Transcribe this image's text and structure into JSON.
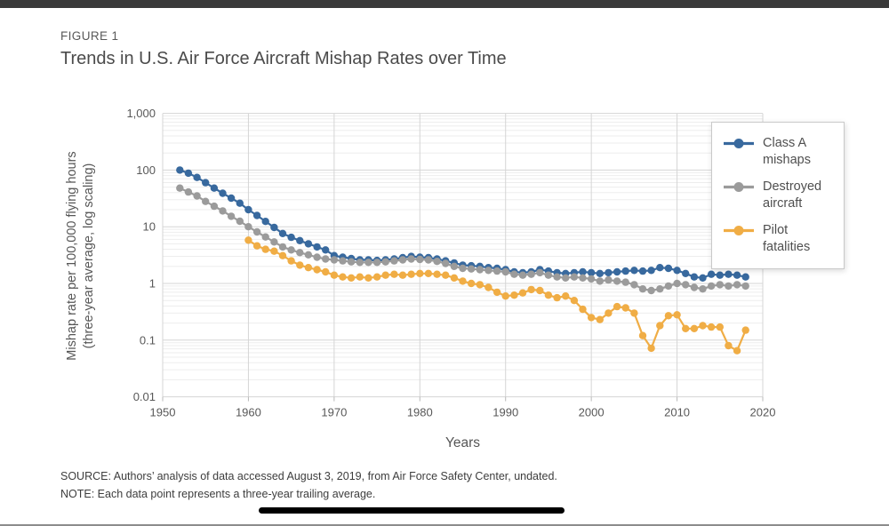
{
  "page": {
    "background": "#ffffff",
    "top_bar_color": "#3a3a3a",
    "bottom_rule_color": "#8c8c8c",
    "home_indicator_color": "#000000"
  },
  "figure": {
    "label": "FIGURE 1",
    "title": "Trends in U.S. Air Force Aircraft Mishap Rates over Time"
  },
  "legend": {
    "items": [
      {
        "label": "Class A mishaps",
        "color": "#38699e"
      },
      {
        "label": "Destroyed aircraft",
        "color": "#9b9b9b"
      },
      {
        "label": "Pilot fatalities",
        "color": "#f0ad45"
      }
    ]
  },
  "footer": {
    "source": "SOURCE: Authors’ analysis of data accessed August 3, 2019, from Air Force Safety Center, undated.",
    "note": "NOTE: Each data point represents a three-year trailing average."
  },
  "chart_data": {
    "type": "line",
    "title": "Trends in U.S. Air Force Aircraft Mishap Rates over Time",
    "xlabel": "Years",
    "ylabel": "Mishap rate per 100,000 flying hours (three-year average, log scaling)",
    "ylabel_line1": "Mishap rate per 100,000 flying hours",
    "ylabel_line2": "(three-year average, log scaling)",
    "y_scale": "log",
    "grid": true,
    "legend_position": "top-right",
    "xlim": [
      1950,
      2020
    ],
    "ylim": [
      0.01,
      1000
    ],
    "x_ticks": [
      1950,
      1960,
      1970,
      1980,
      1990,
      2000,
      2010,
      2020
    ],
    "y_ticks": [
      {
        "label": "1,000",
        "value": 1000
      },
      {
        "label": "100",
        "value": 100
      },
      {
        "label": "10",
        "value": 10
      },
      {
        "label": "1",
        "value": 1
      },
      {
        "label": "0.1",
        "value": 0.1
      },
      {
        "label": "0.01",
        "value": 0.01
      }
    ],
    "series": [
      {
        "name": "Class A mishaps",
        "color": "#38699e",
        "start_year": 1952,
        "end_year": 2018,
        "values": [
          100,
          88,
          74,
          60,
          48,
          39,
          32,
          26,
          20,
          15.8,
          12.4,
          9.7,
          7.6,
          6.5,
          5.7,
          5.0,
          4.4,
          3.9,
          3.1,
          2.9,
          2.75,
          2.6,
          2.6,
          2.55,
          2.6,
          2.7,
          2.85,
          3.0,
          2.9,
          2.85,
          2.7,
          2.5,
          2.3,
          2.1,
          2.05,
          2.0,
          1.9,
          1.85,
          1.75,
          1.6,
          1.55,
          1.6,
          1.75,
          1.65,
          1.55,
          1.5,
          1.55,
          1.6,
          1.55,
          1.5,
          1.55,
          1.6,
          1.65,
          1.7,
          1.65,
          1.7,
          1.9,
          1.85,
          1.7,
          1.5,
          1.3,
          1.25,
          1.45,
          1.4,
          1.45,
          1.4,
          1.3
        ]
      },
      {
        "name": "Destroyed aircraft",
        "color": "#9b9b9b",
        "start_year": 1952,
        "end_year": 2018,
        "values": [
          48,
          41,
          35,
          28,
          23,
          19,
          15.3,
          12.5,
          10,
          8.1,
          6.6,
          5.4,
          4.4,
          3.9,
          3.5,
          3.2,
          2.9,
          2.7,
          2.6,
          2.5,
          2.4,
          2.35,
          2.35,
          2.35,
          2.4,
          2.5,
          2.6,
          2.7,
          2.65,
          2.6,
          2.45,
          2.25,
          2.0,
          1.85,
          1.8,
          1.75,
          1.7,
          1.65,
          1.6,
          1.45,
          1.4,
          1.45,
          1.55,
          1.4,
          1.3,
          1.25,
          1.3,
          1.25,
          1.2,
          1.1,
          1.15,
          1.1,
          1.05,
          0.95,
          0.8,
          0.75,
          0.8,
          0.9,
          1.0,
          0.95,
          0.85,
          0.8,
          0.9,
          0.95,
          0.9,
          0.95,
          0.9
        ]
      },
      {
        "name": "Pilot fatalities",
        "color": "#f0ad45",
        "start_year": 1960,
        "end_year": 2018,
        "values": [
          5.8,
          4.6,
          4.0,
          3.7,
          3.1,
          2.5,
          2.1,
          1.9,
          1.75,
          1.6,
          1.4,
          1.3,
          1.25,
          1.3,
          1.25,
          1.3,
          1.4,
          1.45,
          1.4,
          1.45,
          1.5,
          1.5,
          1.45,
          1.4,
          1.25,
          1.1,
          1.0,
          0.95,
          0.85,
          0.7,
          0.6,
          0.62,
          0.68,
          0.78,
          0.75,
          0.62,
          0.56,
          0.6,
          0.5,
          0.35,
          0.25,
          0.23,
          0.3,
          0.39,
          0.37,
          0.3,
          0.12,
          0.072,
          0.18,
          0.27,
          0.28,
          0.16,
          0.16,
          0.18,
          0.17,
          0.17,
          0.08,
          0.065,
          0.15
        ]
      }
    ]
  }
}
